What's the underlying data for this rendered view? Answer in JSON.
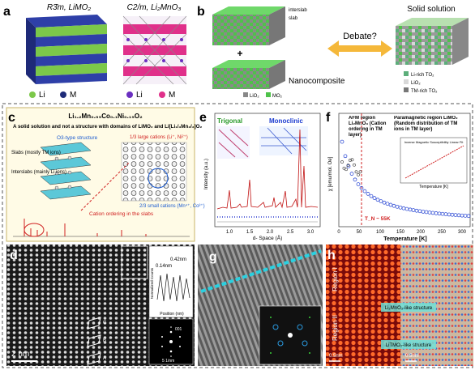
{
  "panels": {
    "a": {
      "label": "a",
      "left_title": "R3̄m, LiMO₂",
      "left_legend": [
        "Li",
        "M"
      ],
      "right_title": "C2/m, Li₂MnO₃",
      "right_legend": [
        "Li",
        "M"
      ]
    },
    "b": {
      "label": "b",
      "interslab": "interslab",
      "slab": "slab",
      "plus": "+",
      "nanocomposite": "Nanocomposite",
      "debate": "Debate?",
      "solid_solution": "Solid solution",
      "composite_legend": [
        "LiO₂",
        "MO₂"
      ],
      "solution_legend": [
        "Li-rich TO₂",
        "LiO₂",
        "TM-rich TO₂"
      ]
    },
    "c": {
      "label": "c",
      "formula": "Li₁.₂Mn₀.₅₅Co₀.₁Ni₀.₁₅O₂",
      "statement": "A solid solution and not a structure with domains of LiMO₂ and Li[Li₁/₃Mn₂/₃]O₂",
      "structure": "O3-type structure",
      "slabs": "Slabs (mostly TM ions)",
      "interslabs": "Interslabs (mainly Li ions)",
      "large_cations": "1/3 large cations (Li⁺, Ni²⁺)",
      "small_cations": "2/3 small cations (Mn⁴⁺, Co³⁺)",
      "ordering": "Cation ordering in the slabs"
    },
    "d": {
      "label": "d",
      "scale": "2 nm",
      "spacing_a": "0.42nm",
      "spacing_b": "0.14nm",
      "profile_x": "Position (nm)",
      "profile_y": "Normalized Counts",
      "fft_scale": "5 1/nm",
      "markers": [
        "C",
        "B",
        "A"
      ],
      "fft_index": "001"
    },
    "e": {
      "label": "e",
      "trigonal": "Trigonal",
      "monoclinic": "Monoclinic",
      "y_label": "Intensity (a.u.)",
      "x_label": "d- Space (Å)",
      "xticks": [
        "1.0",
        "1.5",
        "2.0",
        "2.5",
        "3.0"
      ]
    },
    "f": {
      "label": "f",
      "afm": "AFM region Li₂MnO₃ (Cation ordering in TM layer)",
      "paramagnetic": "Paramagnetic region LiMO₂ (Random distribution of TM ions in TM layer)",
      "neel": "T_N ~ 55K",
      "y_label": "χ [emu/mol. Oe]",
      "x_label": "Temperature [K]",
      "xticks": [
        "0",
        "50",
        "100",
        "150",
        "200",
        "250",
        "300"
      ],
      "inset_title": "Inverse Magnetic Susceptibility Linear Fit",
      "inset_x": "Temperature [K]"
    },
    "g": {
      "label": "g"
    },
    "h": {
      "label": "h",
      "region_1": "Region I",
      "region_2": "Region II",
      "li2mno3_like": "Li₂MnO₃-like structure",
      "litmo2_like": "LiTMO₂-like structure",
      "scale_left": "0.5nm",
      "scale_right": "0.5nm"
    }
  }
}
